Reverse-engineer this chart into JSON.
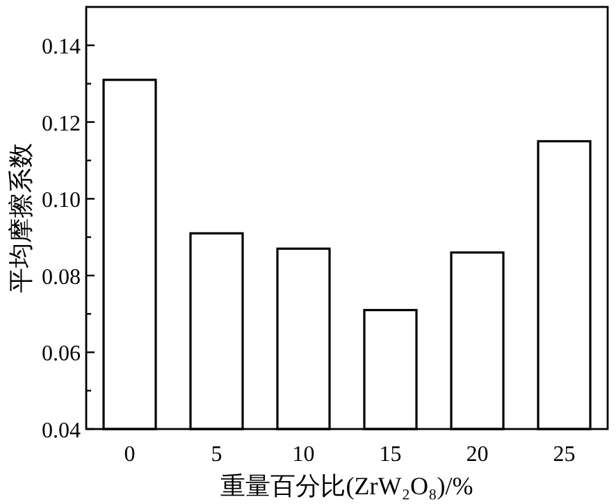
{
  "chart_data": {
    "type": "bar",
    "xlabel": "重量百分比(ZrW₂O₈)/%",
    "ylabel": "平均摩擦系数",
    "categories": [
      "0",
      "5",
      "10",
      "15",
      "20",
      "25"
    ],
    "values": [
      0.131,
      0.091,
      0.087,
      0.071,
      0.086,
      0.115
    ],
    "color": "#ffffff",
    "ylim": [
      0.04,
      0.15
    ],
    "yticks": [
      {
        "value": 0.04,
        "label": "0.04"
      },
      {
        "value": 0.05,
        "label": null
      },
      {
        "value": 0.06,
        "label": "0.06"
      },
      {
        "value": 0.07,
        "label": null
      },
      {
        "value": 0.08,
        "label": "0.08"
      },
      {
        "value": 0.09,
        "label": null
      },
      {
        "value": 0.1,
        "label": "0.10"
      },
      {
        "value": 0.11,
        "label": null
      },
      {
        "value": 0.12,
        "label": "0.12"
      },
      {
        "value": 0.13,
        "label": null
      },
      {
        "value": 0.14,
        "label": "0.14"
      }
    ],
    "grid": false
  }
}
